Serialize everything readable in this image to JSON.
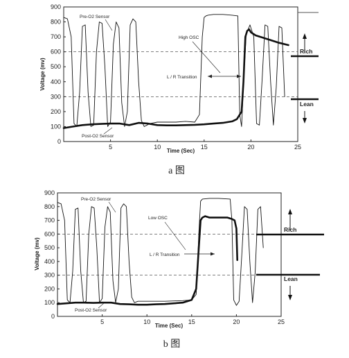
{
  "chart_data": [
    {
      "type": "line",
      "caption": "a 图",
      "xlabel": "Time (Sec)",
      "ylabel": "Voltage (mv)",
      "xlim": [
        0,
        25
      ],
      "ylim": [
        0,
        900
      ],
      "xticks": [
        5,
        10,
        15,
        20,
        25
      ],
      "yticks": [
        0,
        100,
        200,
        300,
        400,
        500,
        600,
        700,
        800,
        900
      ],
      "reference_lines": [
        600,
        300
      ],
      "side_labels": [
        "Rich",
        "Lean"
      ],
      "annotations": [
        "Pre-O2 Sensor",
        "Post-O2 Sensor",
        "High OSC",
        "L / R Transition"
      ],
      "series": [
        {
          "name": "Pre-O2 Sensor",
          "x": [
            0,
            0.4,
            0.8,
            1.1,
            1.4,
            1.7,
            2.0,
            2.3,
            2.6,
            2.9,
            3.2,
            3.5,
            3.8,
            4.1,
            4.4,
            4.7,
            5.0,
            5.3,
            5.6,
            5.9,
            6.2,
            6.5,
            6.8,
            7.1,
            7.4,
            7.7,
            8.0,
            8.3,
            8.6,
            8.9,
            9.2,
            10,
            12,
            13,
            14,
            14.5,
            14.8,
            15.0,
            15.2,
            15.4,
            16,
            17,
            18,
            18.6,
            18.8,
            19.0,
            19.2,
            19.5,
            19.9,
            20.3,
            20.6,
            20.9,
            21.2,
            21.5,
            21.8,
            22.1,
            22.4,
            22.7,
            23.0,
            23.3,
            23.6
          ],
          "y": [
            830,
            820,
            700,
            120,
            100,
            330,
            770,
            780,
            330,
            100,
            110,
            600,
            800,
            790,
            500,
            100,
            130,
            650,
            800,
            760,
            260,
            100,
            200,
            780,
            820,
            800,
            400,
            140,
            100,
            110,
            120,
            130,
            130,
            135,
            130,
            180,
            700,
            830,
            840,
            845,
            850,
            850,
            845,
            840,
            180,
            100,
            380,
            720,
            780,
            700,
            120,
            110,
            420,
            780,
            770,
            400,
            110,
            360,
            770,
            760,
            300
          ]
        },
        {
          "name": "Post-O2 Sensor",
          "x": [
            0,
            1,
            2,
            3,
            4,
            5,
            6,
            7,
            8,
            9,
            10,
            11,
            12,
            13,
            14,
            15,
            16,
            17,
            18,
            18.5,
            19.0,
            19.2,
            19.4,
            19.6,
            19.8,
            20.0,
            20.5,
            21,
            22,
            23,
            24
          ],
          "y": [
            90,
            100,
            110,
            115,
            118,
            120,
            120,
            110,
            125,
            120,
            110,
            108,
            108,
            110,
            112,
            115,
            120,
            125,
            135,
            150,
            200,
            400,
            700,
            740,
            750,
            730,
            710,
            700,
            680,
            660,
            645
          ]
        }
      ]
    },
    {
      "type": "line",
      "caption": "b 图",
      "xlabel": "Time (Sec)",
      "ylabel": "Voltage (mv)",
      "xlim": [
        0,
        25
      ],
      "ylim": [
        0,
        900
      ],
      "xticks": [
        5,
        10,
        15,
        20,
        25
      ],
      "yticks": [
        0,
        100,
        200,
        300,
        400,
        500,
        600,
        700,
        800,
        900
      ],
      "reference_lines": [
        600,
        300
      ],
      "side_labels": [
        "Rich",
        "Lean"
      ],
      "annotations": [
        "Pre-O2 Sensor",
        "Post-O2 Sensor",
        "Low OSC",
        "L / R Transition"
      ],
      "series": [
        {
          "name": "Pre-O2 Sensor",
          "x": [
            0,
            0.4,
            0.8,
            1.1,
            1.4,
            1.7,
            2.0,
            2.3,
            2.6,
            2.9,
            3.2,
            3.5,
            3.8,
            4.1,
            4.4,
            4.7,
            5.0,
            5.3,
            5.6,
            5.9,
            6.2,
            6.5,
            6.8,
            7.1,
            7.4,
            7.7,
            8.0,
            8.3,
            8.6,
            9,
            10,
            12,
            14,
            15,
            15.5,
            15.8,
            16.0,
            16.2,
            17,
            18,
            19.3,
            19.5,
            19.7,
            20.0,
            20.3,
            20.6,
            20.9,
            21.2,
            21.5,
            21.8,
            22.1,
            22.4,
            22.7,
            23.0
          ],
          "y": [
            830,
            820,
            700,
            120,
            100,
            330,
            780,
            790,
            330,
            100,
            110,
            600,
            800,
            790,
            500,
            100,
            130,
            650,
            800,
            760,
            260,
            100,
            200,
            790,
            820,
            800,
            400,
            140,
            100,
            110,
            110,
            110,
            115,
            120,
            160,
            600,
            840,
            855,
            860,
            860,
            855,
            700,
            120,
            80,
            110,
            450,
            800,
            780,
            400,
            100,
            320,
            780,
            800,
            500
          ]
        },
        {
          "name": "Post-O2 Sensor",
          "x": [
            0,
            1,
            2,
            3,
            4,
            5,
            6,
            7,
            8,
            9,
            10,
            11,
            12,
            13,
            14,
            15,
            15.5,
            15.8,
            16.0,
            16.2,
            16.5,
            17,
            18,
            19,
            19.5,
            19.8,
            20.0,
            20.1
          ],
          "y": [
            90,
            95,
            100,
            100,
            98,
            100,
            100,
            90,
            88,
            85,
            85,
            88,
            90,
            95,
            100,
            120,
            200,
            500,
            700,
            720,
            730,
            720,
            720,
            720,
            710,
            700,
            640,
            410
          ]
        }
      ]
    }
  ]
}
